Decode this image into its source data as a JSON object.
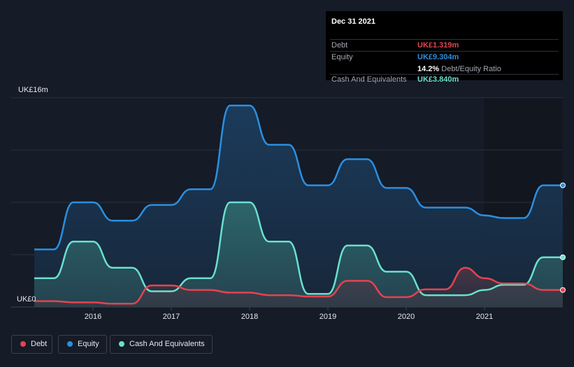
{
  "tooltip": {
    "date": "Dec 31 2021",
    "rows": [
      {
        "label": "Debt",
        "value": "UK£1.319m",
        "color": "#e5434f"
      },
      {
        "label": "Equity",
        "value": "UK£9.304m",
        "color": "#2b8fe0"
      },
      {
        "label": "",
        "value": "14.2%",
        "suffix": "Debt/Equity Ratio",
        "color": "#ffffff"
      },
      {
        "label": "Cash And Equivalents",
        "value": "UK£3.840m",
        "color": "#6ae0cf"
      }
    ]
  },
  "legend": [
    {
      "label": "Debt",
      "color": "#e5434f"
    },
    {
      "label": "Equity",
      "color": "#2b8fe0"
    },
    {
      "label": "Cash And Equivalents",
      "color": "#6ae0cf"
    }
  ],
  "chart_data": {
    "type": "area",
    "y_top_label": "UK£16m",
    "y_bottom_label": "UK£0",
    "ylim": [
      0,
      16
    ],
    "xlim": [
      2015.25,
      2022.0
    ],
    "x_ticks": [
      "2016",
      "2017",
      "2018",
      "2019",
      "2020",
      "2021"
    ],
    "x_tick_values": [
      2016,
      2017,
      2018,
      2019,
      2020,
      2021
    ],
    "y_unit": "UK£m",
    "series": [
      {
        "name": "Equity",
        "color": "#2b8fe0",
        "points": [
          [
            2015.25,
            4.4
          ],
          [
            2015.5,
            4.4
          ],
          [
            2015.75,
            8.0
          ],
          [
            2016.0,
            8.0
          ],
          [
            2016.25,
            6.6
          ],
          [
            2016.5,
            6.6
          ],
          [
            2016.75,
            7.8
          ],
          [
            2017.0,
            7.8
          ],
          [
            2017.25,
            9.0
          ],
          [
            2017.5,
            9.0
          ],
          [
            2017.75,
            15.4
          ],
          [
            2018.0,
            15.4
          ],
          [
            2018.25,
            12.4
          ],
          [
            2018.5,
            12.4
          ],
          [
            2018.75,
            9.3
          ],
          [
            2019.0,
            9.3
          ],
          [
            2019.25,
            11.3
          ],
          [
            2019.5,
            11.3
          ],
          [
            2019.75,
            9.1
          ],
          [
            2020.0,
            9.1
          ],
          [
            2020.25,
            7.6
          ],
          [
            2020.5,
            7.6
          ],
          [
            2020.75,
            7.6
          ],
          [
            2021.0,
            7.0
          ],
          [
            2021.25,
            6.8
          ],
          [
            2021.5,
            6.8
          ],
          [
            2021.75,
            9.3
          ],
          [
            2022.0,
            9.3
          ]
        ]
      },
      {
        "name": "Cash And Equivalents",
        "color": "#6ae0cf",
        "points": [
          [
            2015.25,
            2.2
          ],
          [
            2015.5,
            2.2
          ],
          [
            2015.75,
            5.0
          ],
          [
            2016.0,
            5.0
          ],
          [
            2016.25,
            3.0
          ],
          [
            2016.5,
            3.0
          ],
          [
            2016.75,
            1.2
          ],
          [
            2017.0,
            1.2
          ],
          [
            2017.25,
            2.2
          ],
          [
            2017.5,
            2.2
          ],
          [
            2017.75,
            8.0
          ],
          [
            2018.0,
            8.0
          ],
          [
            2018.25,
            5.0
          ],
          [
            2018.5,
            5.0
          ],
          [
            2018.75,
            1.0
          ],
          [
            2019.0,
            1.0
          ],
          [
            2019.25,
            4.7
          ],
          [
            2019.5,
            4.7
          ],
          [
            2019.75,
            2.7
          ],
          [
            2020.0,
            2.7
          ],
          [
            2020.25,
            0.9
          ],
          [
            2020.5,
            0.9
          ],
          [
            2020.75,
            0.9
          ],
          [
            2021.0,
            1.3
          ],
          [
            2021.25,
            1.7
          ],
          [
            2021.5,
            1.7
          ],
          [
            2021.75,
            3.8
          ],
          [
            2022.0,
            3.8
          ]
        ]
      },
      {
        "name": "Debt",
        "color": "#e5434f",
        "points": [
          [
            2015.25,
            0.45
          ],
          [
            2015.5,
            0.45
          ],
          [
            2015.75,
            0.35
          ],
          [
            2016.0,
            0.35
          ],
          [
            2016.25,
            0.25
          ],
          [
            2016.5,
            0.25
          ],
          [
            2016.75,
            1.65
          ],
          [
            2017.0,
            1.65
          ],
          [
            2017.25,
            1.3
          ],
          [
            2017.5,
            1.3
          ],
          [
            2017.75,
            1.1
          ],
          [
            2018.0,
            1.1
          ],
          [
            2018.25,
            0.9
          ],
          [
            2018.5,
            0.9
          ],
          [
            2018.75,
            0.8
          ],
          [
            2019.0,
            0.8
          ],
          [
            2019.25,
            2.0
          ],
          [
            2019.5,
            2.0
          ],
          [
            2019.75,
            0.75
          ],
          [
            2020.0,
            0.75
          ],
          [
            2020.25,
            1.35
          ],
          [
            2020.5,
            1.35
          ],
          [
            2020.75,
            3.0
          ],
          [
            2021.0,
            2.2
          ],
          [
            2021.25,
            1.8
          ],
          [
            2021.5,
            1.8
          ],
          [
            2021.75,
            1.3
          ],
          [
            2022.0,
            1.3
          ]
        ]
      }
    ],
    "highlight_x": 2021.75,
    "legend_position": "bottom-left"
  }
}
